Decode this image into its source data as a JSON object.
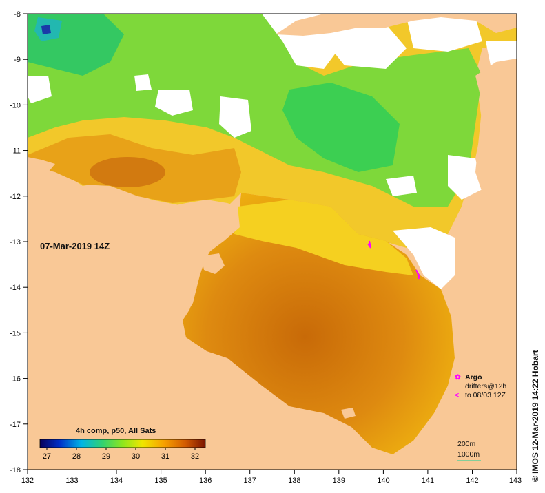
{
  "map": {
    "date_label": "07-Mar-2019 14Z",
    "composite_label": "4h comp, p50, All Sats",
    "credit": "© IMOS 12-Mar-2019 14:22 Hobart",
    "lon_ticks": [
      "132",
      "133",
      "134",
      "135",
      "136",
      "137",
      "138",
      "139",
      "140",
      "141",
      "142",
      "143"
    ],
    "lat_ticks": [
      "-8",
      "-9",
      "-10",
      "-11",
      "-12",
      "-13",
      "-14",
      "-15",
      "-16",
      "-17",
      "-18"
    ],
    "colorbar_ticks": [
      "27",
      "28",
      "29",
      "30",
      "31",
      "32"
    ],
    "legend": {
      "argo": "Argo",
      "drifters_line1": "drifters@12h",
      "drifters_line2": "to 08/03 12Z"
    },
    "isobaths": [
      "200m",
      "1000m"
    ],
    "colors": {
      "land": "#f9c896",
      "no_data": "#ffffff",
      "marker": "#ff00ff",
      "isobath_1000": "#5fd09a"
    }
  }
}
